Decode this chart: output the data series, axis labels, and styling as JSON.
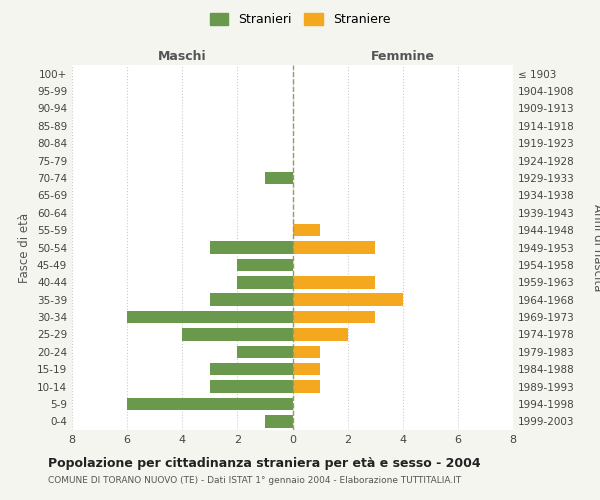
{
  "age_groups": [
    "0-4",
    "5-9",
    "10-14",
    "15-19",
    "20-24",
    "25-29",
    "30-34",
    "35-39",
    "40-44",
    "45-49",
    "50-54",
    "55-59",
    "60-64",
    "65-69",
    "70-74",
    "75-79",
    "80-84",
    "85-89",
    "90-94",
    "95-99",
    "100+"
  ],
  "birth_years": [
    "1999-2003",
    "1994-1998",
    "1989-1993",
    "1984-1988",
    "1979-1983",
    "1974-1978",
    "1969-1973",
    "1964-1968",
    "1959-1963",
    "1954-1958",
    "1949-1953",
    "1944-1948",
    "1939-1943",
    "1934-1938",
    "1929-1933",
    "1924-1928",
    "1919-1923",
    "1914-1918",
    "1909-1913",
    "1904-1908",
    "≤ 1903"
  ],
  "maschi": [
    1,
    6,
    3,
    3,
    2,
    4,
    6,
    3,
    2,
    2,
    3,
    0,
    0,
    0,
    1,
    0,
    0,
    0,
    0,
    0,
    0
  ],
  "femmine": [
    0,
    0,
    1,
    1,
    1,
    2,
    3,
    4,
    3,
    0,
    3,
    1,
    0,
    0,
    0,
    0,
    0,
    0,
    0,
    0,
    0
  ],
  "color_maschi": "#6a994e",
  "color_femmine": "#f4a820",
  "title": "Popolazione per cittadinanza straniera per età e sesso - 2004",
  "subtitle": "COMUNE DI TORANO NUOVO (TE) - Dati ISTAT 1° gennaio 2004 - Elaborazione TUTTITALIA.IT",
  "xlabel_left": "Maschi",
  "xlabel_right": "Femmine",
  "ylabel_left": "Fasce di età",
  "ylabel_right": "Anni di nascita",
  "legend_maschi": "Stranieri",
  "legend_femmine": "Straniere",
  "xlim": 8,
  "bg_color": "#f5f5f0",
  "plot_bg_color": "#ffffff",
  "grid_color": "#cccccc",
  "vline_color": "#999966"
}
